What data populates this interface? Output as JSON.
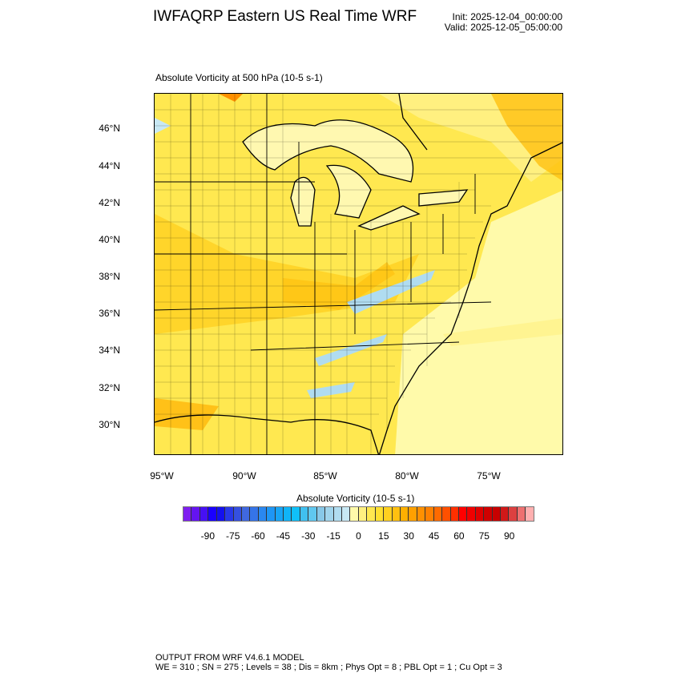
{
  "header": {
    "title": "IWFAQRP Eastern US Real Time WRF",
    "init": "Init: 2025-12-04_00:00:00",
    "valid": "Valid: 2025-12-05_05:00:00"
  },
  "map": {
    "subtitle": "Absolute Vorticity at 500 hPa   (10-5 s-1)",
    "lat_labels": [
      "46°N",
      "44°N",
      "42°N",
      "40°N",
      "38°N",
      "36°N",
      "34°N",
      "32°N",
      "30°N"
    ],
    "lon_labels": [
      "95°W",
      "90°W",
      "85°W",
      "80°W",
      "75°W"
    ]
  },
  "colorbar": {
    "title": "Absolute Vorticity  (10-5 s-1)",
    "labels": [
      "-90",
      "-75",
      "-60",
      "-45",
      "-30",
      "-15",
      "0",
      "15",
      "30",
      "45",
      "60",
      "75",
      "90"
    ],
    "range": [
      -105,
      105
    ],
    "interval": 5,
    "colors": [
      "#7f1ff0",
      "#6414f0",
      "#4610f4",
      "#1a00ff",
      "#1410ee",
      "#2838e8",
      "#3550e0",
      "#4068e0",
      "#3574e8",
      "#2a88f0",
      "#1e96f5",
      "#18a4f5",
      "#10b4f8",
      "#10c0f8",
      "#40c0f0",
      "#60c8f0",
      "#88c8e8",
      "#a0d4ec",
      "#b0dcf0",
      "#c8e8f4",
      "#fffaaa",
      "#fff080",
      "#ffe850",
      "#ffe030",
      "#ffd020",
      "#ffc010",
      "#ffb000",
      "#ffa000",
      "#ff9000",
      "#ff8000",
      "#ff6a00",
      "#ff5000",
      "#ff3000",
      "#ff0000",
      "#f00000",
      "#e00000",
      "#d00000",
      "#c80000",
      "#d01818",
      "#dc4040",
      "#ee7070",
      "#ffb0b0"
    ]
  },
  "footer": {
    "line1": "OUTPUT FROM WRF V4.6.1 MODEL",
    "line2": "WE = 310 ; SN = 275 ; Levels = 38 ; Dis = 8km ; Phys Opt = 8 ; PBL Opt = 1 ; Cu Opt = 3"
  }
}
